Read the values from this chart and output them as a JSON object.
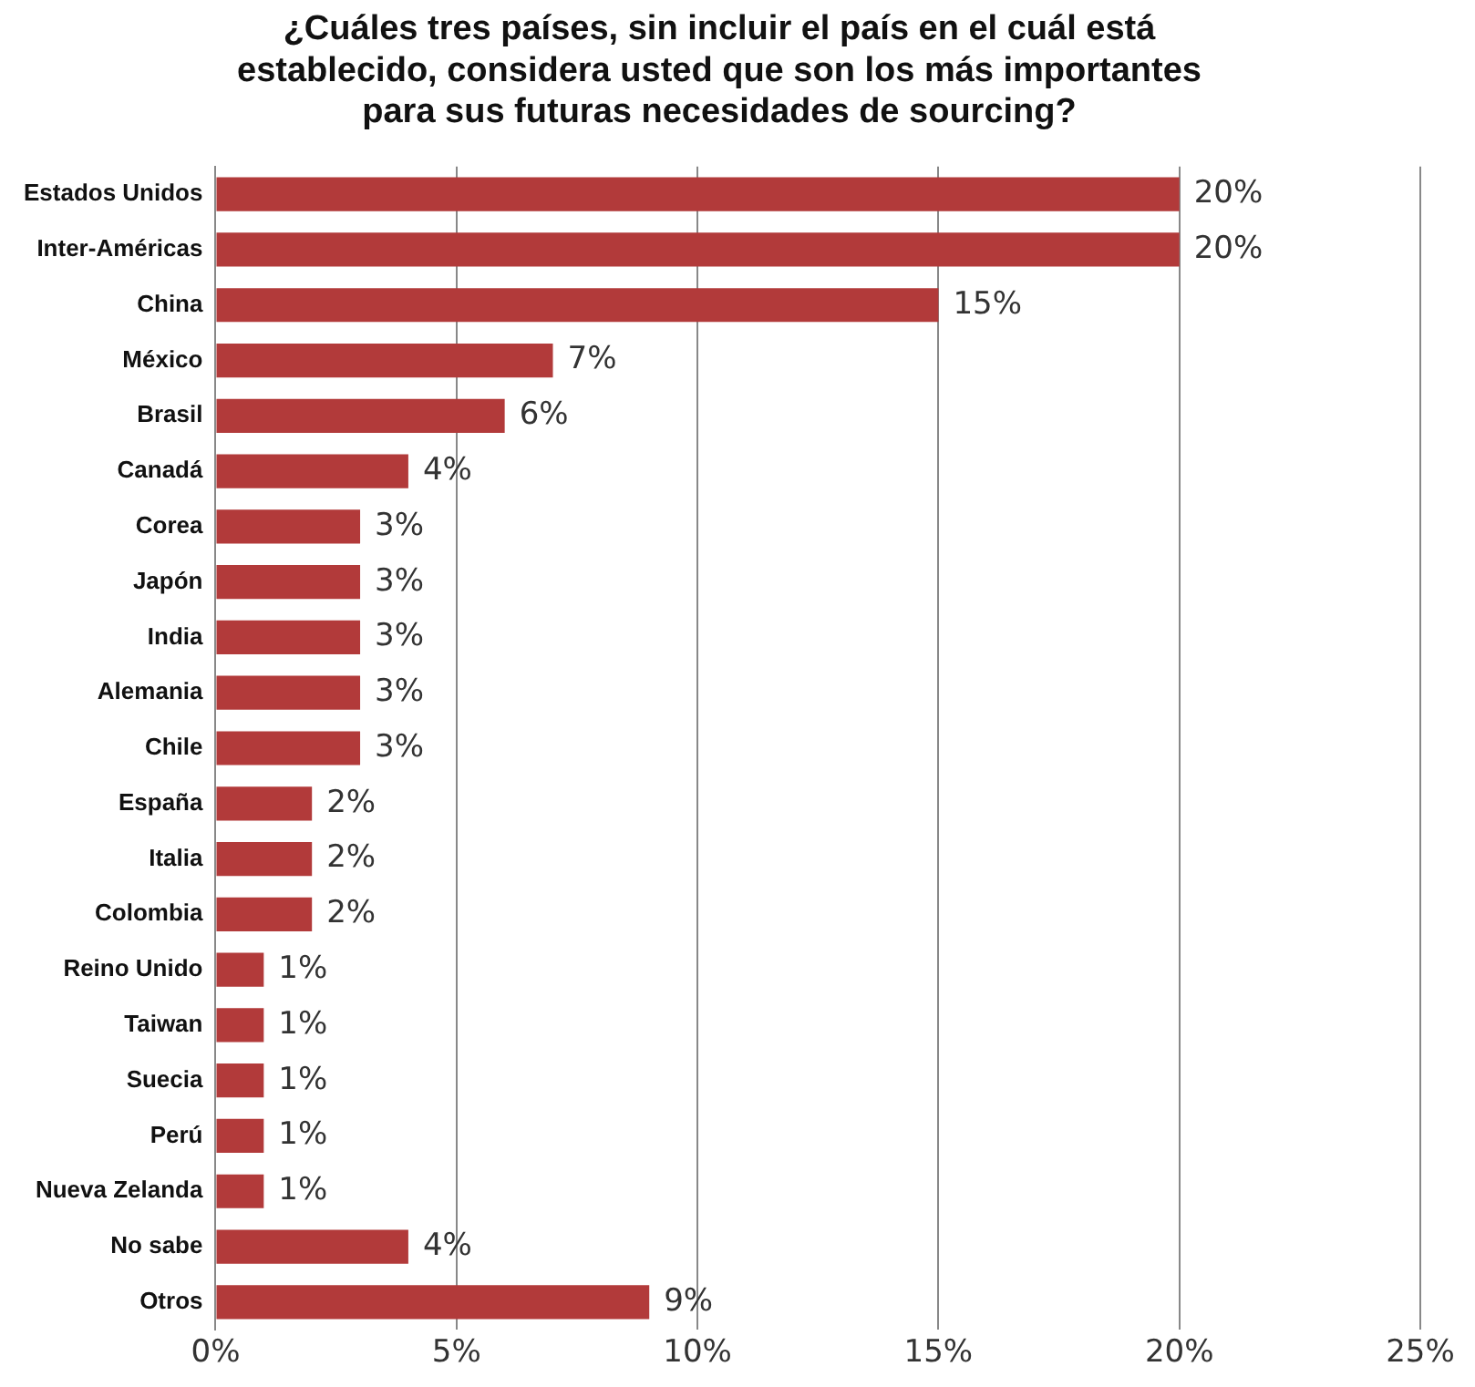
{
  "chart_data": {
    "type": "bar",
    "orientation": "horizontal",
    "title": [
      "¿Cuáles tres países, sin incluir el país en el cuál está",
      "establecido, considera usted que son los más importantes",
      "para sus futuras necesidades de sourcing?"
    ],
    "categories": [
      "Estados Unidos",
      "Inter-Américas",
      "China",
      "México",
      "Brasil",
      "Canadá",
      "Corea",
      "Japón",
      "India",
      "Alemania",
      "Chile",
      "España",
      "Italia",
      "Colombia",
      "Reino Unido",
      "Taiwan",
      "Suecia",
      "Perú",
      "Nueva Zelanda",
      "No sabe",
      "Otros"
    ],
    "values": [
      20,
      20,
      15,
      7,
      6,
      4,
      3,
      3,
      3,
      3,
      3,
      2,
      2,
      2,
      1,
      1,
      1,
      1,
      1,
      4,
      9
    ],
    "value_labels": [
      "20%",
      "20%",
      "15%",
      "7%",
      "6%",
      "4%",
      "3%",
      "3%",
      "3%",
      "3%",
      "3%",
      "2%",
      "2%",
      "2%",
      "1%",
      "1%",
      "1%",
      "1%",
      "1%",
      "4%",
      "9%"
    ],
    "color": "#b23a3a",
    "xlim": [
      0,
      25
    ],
    "xticks": [
      {
        "value": 0,
        "label": "0%"
      },
      {
        "value": 5,
        "label": "5%"
      },
      {
        "value": 10,
        "label": "10%"
      },
      {
        "value": 15,
        "label": "15%"
      },
      {
        "value": 20,
        "label": "20%"
      },
      {
        "value": 25,
        "label": "25%"
      }
    ],
    "grid": "x",
    "legend": false
  }
}
